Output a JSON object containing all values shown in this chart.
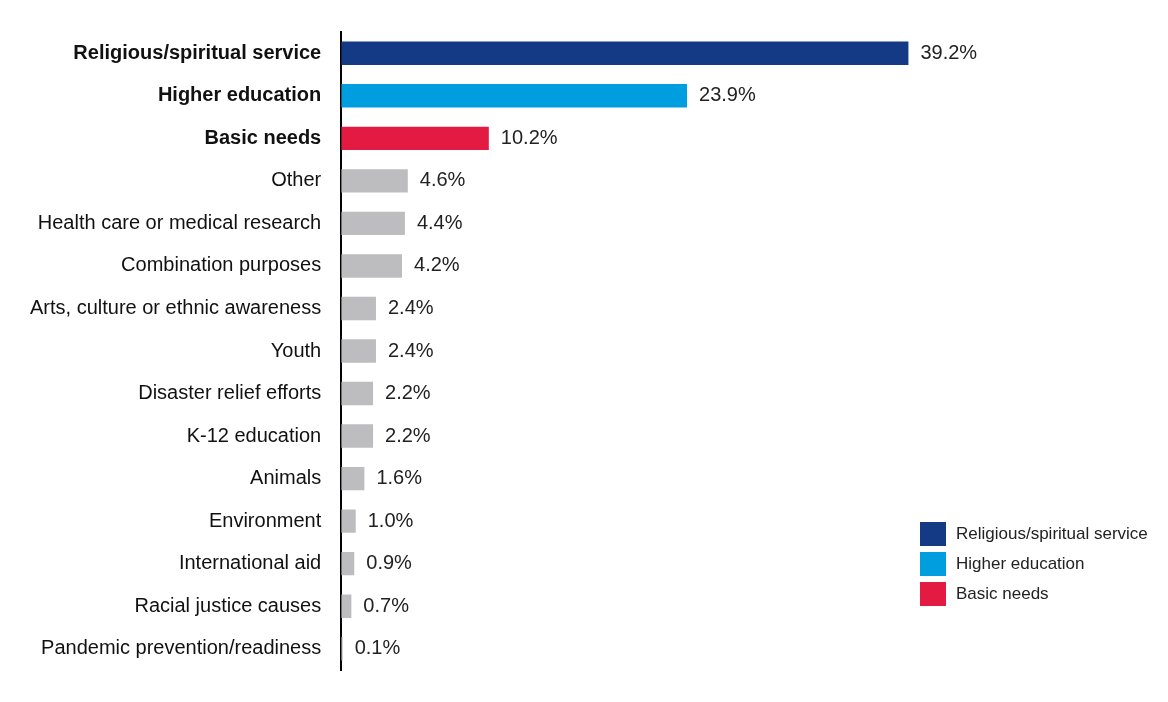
{
  "chart_data": {
    "type": "bar",
    "orientation": "horizontal",
    "legend": "bottom right",
    "categories": [
      "Religious/spiritual service",
      "Higher education",
      "Basic needs",
      "Other",
      "Health care or medical research",
      "Combination purposes",
      "Arts, culture or ethnic awareness",
      "Youth",
      "Disaster relief efforts",
      "K-12 education",
      "Animals",
      "Environment",
      "International aid",
      "Racial justice causes",
      "Pandemic prevention/readiness"
    ],
    "series": [
      {
        "name": "Religious/spiritual service",
        "color": "#143a85",
        "values": [
          39.2,
          null,
          null,
          null,
          null,
          null,
          null,
          null,
          null,
          null,
          null,
          null,
          null,
          null,
          null
        ],
        "value_labels": [
          "39.2%",
          null,
          null,
          null,
          null,
          null,
          null,
          null,
          null,
          null,
          null,
          null,
          null,
          null,
          null
        ]
      },
      {
        "name": "Higher education",
        "color": "#009ddf",
        "values": [
          null,
          23.9,
          null,
          null,
          null,
          null,
          null,
          null,
          null,
          null,
          null,
          null,
          null,
          null,
          null
        ],
        "value_labels": [
          null,
          "23.9%",
          null,
          null,
          null,
          null,
          null,
          null,
          null,
          null,
          null,
          null,
          null,
          null,
          null
        ]
      },
      {
        "name": "Basic needs",
        "color": "#e31b43",
        "values": [
          null,
          null,
          10.2,
          null,
          null,
          null,
          null,
          null,
          null,
          null,
          null,
          null,
          null,
          null,
          null
        ],
        "value_labels": [
          null,
          null,
          "10.2%",
          null,
          null,
          null,
          null,
          null,
          null,
          null,
          null,
          null,
          null,
          null,
          null
        ]
      },
      {
        "color": "#bdbdbf",
        "values": [
          null,
          null,
          null,
          4.6,
          4.4,
          4.2,
          2.4,
          2.4,
          2.2,
          2.2,
          1.6,
          1.0,
          0.9,
          0.7,
          0.1
        ],
        "value_labels": [
          null,
          null,
          null,
          "4.6%",
          "4.4%",
          "4.2%",
          "2.4%",
          "2.4%",
          "2.2%",
          "2.2%",
          "1.6%",
          "1.0%",
          "0.9%",
          "0.7%",
          "0.1%"
        ]
      }
    ]
  }
}
